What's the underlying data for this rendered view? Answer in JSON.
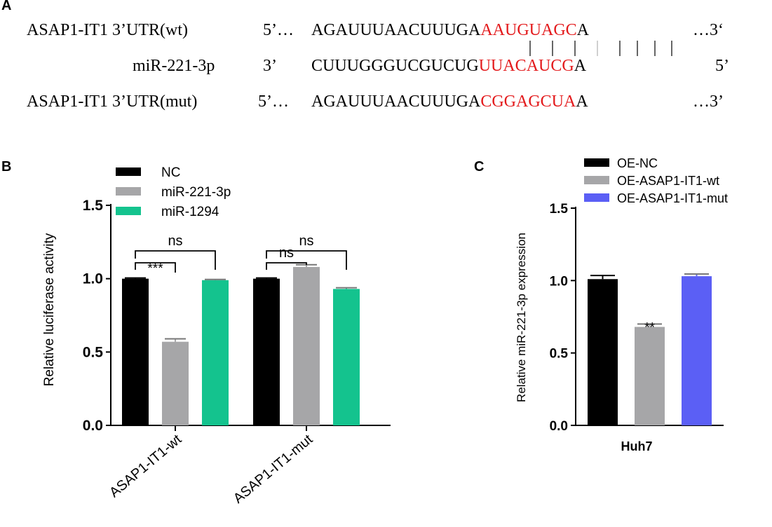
{
  "panel_a": {
    "label": "A",
    "rows": [
      {
        "name": "ASAP1-IT1 3’UTR(wt)",
        "prime_left": "5’…",
        "seq_black": "AGAUUUAACUUUGA",
        "seq_red": "AAUGUAGC",
        "seq_tail": "A",
        "prime_right": "…3‘"
      },
      {
        "name": "miR-221-3p",
        "prime_left": "3’",
        "seq_black": "CUUUGGGUCGUCUG",
        "seq_red": "UUACAUCG",
        "seq_tail": "A",
        "prime_right": "5’"
      },
      {
        "name": "ASAP1-IT1 3’UTR(mut)",
        "prime_left": "5’…",
        "seq_black": "AGAUUUAACUUUGA",
        "seq_red": "CGGAGCUA",
        "seq_tail": "A",
        "prime_right": "…3’"
      }
    ]
  },
  "colors": {
    "red": "#e31a1c",
    "black": "#000000",
    "gray": "#a6a6a8",
    "green": "#14c38e",
    "blue": "#5b5ff5"
  },
  "chart_data": [
    {
      "panel": "B",
      "type": "bar",
      "ylabel": "Relative luciferase activity",
      "ylim": [
        0,
        1.5
      ],
      "yticks": [
        "0.0",
        "0.5",
        "1.0",
        "1.5"
      ],
      "categories": [
        "ASAP1-IT1-wt",
        "ASAP1-IT1-mut"
      ],
      "series": [
        {
          "name": "NC",
          "values": [
            1.0,
            1.0
          ],
          "errors": [
            0.005,
            0.005
          ],
          "color": "#000000"
        },
        {
          "name": "miR-221-3p",
          "values": [
            0.57,
            1.08
          ],
          "errors": [
            0.02,
            0.015
          ],
          "color": "#a6a6a8"
        },
        {
          "name": "miR-1294",
          "values": [
            0.99,
            0.93
          ],
          "errors": [
            0.005,
            0.008
          ],
          "color": "#14c38e"
        }
      ],
      "legend": "top",
      "annotations": [
        {
          "text": "***",
          "category": 0,
          "from": 0,
          "to": 1
        },
        {
          "text": "ns",
          "category": 0,
          "from": 0,
          "to": 2
        },
        {
          "text": "ns",
          "category": 1,
          "from": 0,
          "to": 1
        },
        {
          "text": "ns",
          "category": 1,
          "from": 0,
          "to": 2
        }
      ]
    },
    {
      "panel": "C",
      "type": "bar",
      "ylabel": "Relative miR-221-3p expression",
      "xlabel": "Huh7",
      "ylim": [
        0,
        1.5
      ],
      "yticks": [
        "0.0",
        "0.5",
        "1.0",
        "1.5"
      ],
      "series": [
        {
          "name": "OE-NC",
          "values": [
            1.01
          ],
          "errors": [
            0.025
          ],
          "color": "#000000"
        },
        {
          "name": "OE-ASAP1-IT1-wt",
          "values": [
            0.68
          ],
          "errors": [
            0.02
          ],
          "color": "#a6a6a8"
        },
        {
          "name": "OE-ASAP1-IT1-mut",
          "values": [
            1.03
          ],
          "errors": [
            0.015
          ],
          "color": "#5b5ff5"
        }
      ],
      "legend": "top",
      "annotations": [
        {
          "text": "**",
          "bar": 1
        }
      ]
    }
  ]
}
